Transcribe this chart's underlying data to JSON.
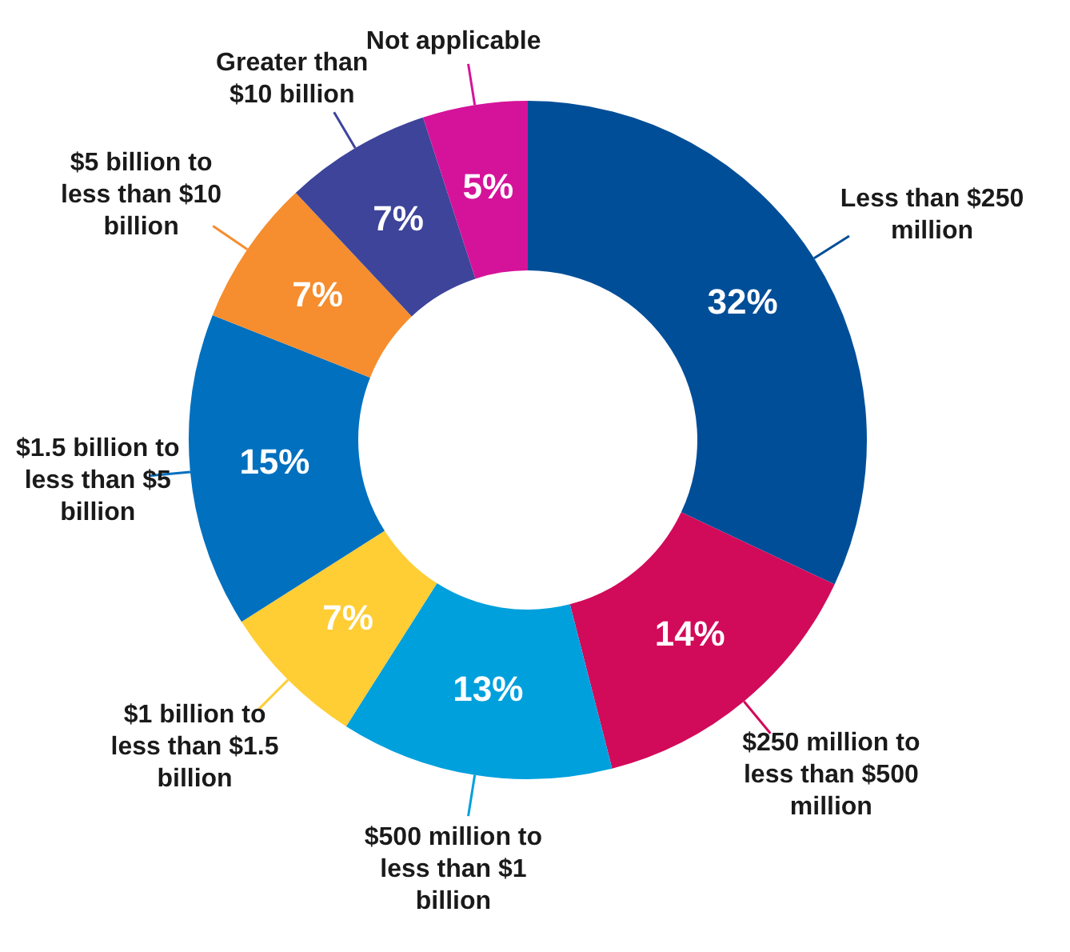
{
  "chart_data": {
    "type": "donut",
    "categories": [
      "Less than $250 million",
      "$250 million to less than $500 million",
      "$500 million to less than $1 billion",
      "$1 billion to less than $1.5 billion",
      "$1.5 billion to less than $5 billion",
      "$5 billion to less than $10 billion",
      "Greater than $10 billion",
      "Not applicable"
    ],
    "values": [
      32,
      14,
      13,
      7,
      15,
      7,
      7,
      5
    ],
    "value_labels": [
      "32%",
      "14%",
      "13%",
      "7%",
      "15%",
      "7%",
      "7%",
      "5%"
    ],
    "colors": [
      "#004e98",
      "#d20a5a",
      "#00a0dc",
      "#ffcd34",
      "#0070bf",
      "#f68d2e",
      "#3d449a",
      "#d5139a"
    ],
    "legend": false
  }
}
